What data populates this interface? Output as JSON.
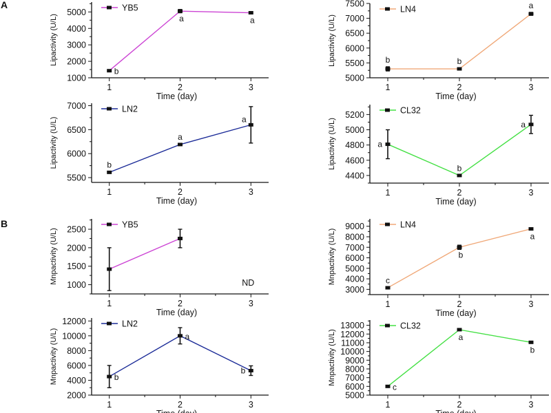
{
  "panel_labels": [
    "A",
    "B"
  ],
  "colors": {
    "YB5": "#cc44d4",
    "LN4": "#f0a878",
    "LN2": "#1c2c98",
    "CL32": "#44e044",
    "marker": "#111111"
  },
  "chart_data": [
    {
      "type": "line",
      "panel": "A",
      "xlabel": "Time (day)",
      "ylabel": "Lipactivity (U/L)",
      "xlim": [
        0.75,
        3.25
      ],
      "ylim": [
        1000,
        5600
      ],
      "yticks": [
        1000,
        2000,
        3000,
        4000,
        5000
      ],
      "xticks": [
        1,
        2,
        3
      ],
      "series": [
        {
          "name": "YB5",
          "x": [
            1,
            2,
            3
          ],
          "y": [
            1430,
            5050,
            4950
          ],
          "err": [
            30,
            100,
            30
          ],
          "letters": [
            "b",
            "a",
            "a"
          ],
          "letter_pos": [
            "right",
            "below",
            "below"
          ]
        }
      ]
    },
    {
      "type": "line",
      "panel": "A",
      "xlabel": "Time (day)",
      "ylabel": "Lipactivity (U/L)",
      "xlim": [
        0.75,
        3.25
      ],
      "ylim": [
        5000,
        7500
      ],
      "yticks": [
        5000,
        5500,
        6000,
        6500,
        7000,
        7500
      ],
      "xticks": [
        1,
        2,
        3
      ],
      "series": [
        {
          "name": "LN4",
          "x": [
            1,
            2,
            3
          ],
          "y": [
            5300,
            5300,
            7150
          ],
          "err": [
            70,
            20,
            50
          ],
          "letters": [
            "b",
            "b",
            "a"
          ],
          "letter_pos": [
            "above",
            "above",
            "above"
          ]
        }
      ]
    },
    {
      "type": "line",
      "panel": "A",
      "xlabel": "Time (day)",
      "ylabel": "Lipactivity (U/L)",
      "xlim": [
        0.75,
        3.25
      ],
      "ylim": [
        5400,
        7050
      ],
      "yticks": [
        5500,
        6000,
        6500,
        7000
      ],
      "xticks": [
        1,
        2,
        3
      ],
      "series": [
        {
          "name": "LN2",
          "x": [
            1,
            2,
            3
          ],
          "y": [
            5610,
            6190,
            6600
          ],
          "err": [
            10,
            10,
            380
          ],
          "letters": [
            "b",
            "a",
            "a"
          ],
          "letter_pos": [
            "above",
            "above",
            "above-left"
          ]
        }
      ]
    },
    {
      "type": "line",
      "panel": "A",
      "xlabel": "Time (day)",
      "ylabel": "Lipactivity (U/L)",
      "xlim": [
        0.75,
        3.25
      ],
      "ylim": [
        4300,
        5330
      ],
      "yticks": [
        4400,
        4600,
        4800,
        5000,
        5200
      ],
      "xticks": [
        1,
        2,
        3
      ],
      "series": [
        {
          "name": "CL32",
          "x": [
            1,
            2,
            3
          ],
          "y": [
            4810,
            4400,
            5070
          ],
          "err": [
            190,
            5,
            120
          ],
          "letters": [
            "a",
            "b",
            "a"
          ],
          "letter_pos": [
            "left",
            "above",
            "left"
          ]
        }
      ]
    },
    {
      "type": "line",
      "panel": "B",
      "xlabel": "Time (day)",
      "ylabel": "Mnpactivity (U/L)",
      "xlim": [
        0.75,
        3.25
      ],
      "ylim": [
        750,
        2780
      ],
      "yticks": [
        1000,
        1500,
        2000,
        2500
      ],
      "xticks": [
        1,
        2,
        3
      ],
      "annotations": [
        {
          "text": "ND",
          "x": 3
        }
      ],
      "series": [
        {
          "name": "YB5",
          "x": [
            1,
            2
          ],
          "y": [
            1420,
            2250
          ],
          "err": [
            580,
            250
          ],
          "letters": [],
          "letter_pos": []
        }
      ]
    },
    {
      "type": "line",
      "panel": "B",
      "xlabel": "Time (day)",
      "ylabel": "Mnpactivity (U/L)",
      "xlim": [
        0.75,
        3.25
      ],
      "ylim": [
        2500,
        9700
      ],
      "yticks": [
        3000,
        4000,
        5000,
        6000,
        7000,
        8000,
        9000
      ],
      "xticks": [
        1,
        2,
        3
      ],
      "series": [
        {
          "name": "LN4",
          "x": [
            1,
            2,
            3
          ],
          "y": [
            3150,
            7000,
            8750
          ],
          "err": [
            50,
            200,
            50
          ],
          "letters": [
            "c",
            "b",
            "a"
          ],
          "letter_pos": [
            "above",
            "below",
            "below"
          ]
        }
      ]
    },
    {
      "type": "line",
      "panel": "B",
      "xlabel": "Time (day)",
      "ylabel": "Mnpactivity (U/L)",
      "xlim": [
        0.75,
        3.25
      ],
      "ylim": [
        2000,
        12400
      ],
      "yticks": [
        2000,
        4000,
        6000,
        8000,
        10000,
        12000
      ],
      "xticks": [
        1,
        2,
        3
      ],
      "series": [
        {
          "name": "LN2",
          "x": [
            1,
            2,
            3
          ],
          "y": [
            4500,
            10000,
            5300
          ],
          "err": [
            1500,
            1100,
            650
          ],
          "letters": [
            "b",
            "a",
            "b"
          ],
          "letter_pos": [
            "right",
            "right",
            "left"
          ]
        }
      ]
    },
    {
      "type": "line",
      "panel": "B",
      "xlabel": "Time (day)",
      "ylabel": "Mnpactivity (U/L)",
      "xlim": [
        0.75,
        3.25
      ],
      "ylim": [
        5000,
        13600
      ],
      "yticks": [
        5000,
        6000,
        7000,
        8000,
        9000,
        10000,
        11000,
        12000,
        13000
      ],
      "xticks": [
        1,
        2,
        3
      ],
      "series": [
        {
          "name": "CL32",
          "x": [
            1,
            2,
            3
          ],
          "y": [
            6000,
            12500,
            11050
          ],
          "err": [
            50,
            100,
            50
          ],
          "letters": [
            "c",
            "a",
            "b"
          ],
          "letter_pos": [
            "right",
            "below",
            "below"
          ]
        }
      ]
    }
  ]
}
